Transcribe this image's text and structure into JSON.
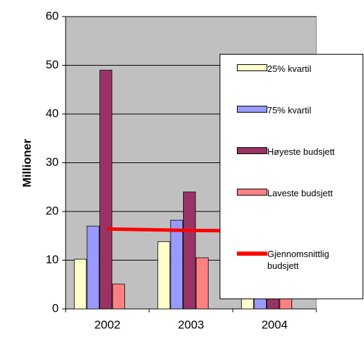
{
  "chart_data": {
    "type": "bar",
    "categories": [
      "2002",
      "2003",
      "2004"
    ],
    "y_label": "Millioner",
    "series": [
      {
        "name": "25% kvartil",
        "color": "#ffffcc",
        "values": [
          10.2,
          13.8,
          12
        ]
      },
      {
        "name": "75% kvartil",
        "color": "#9999ff",
        "values": [
          17,
          18.2,
          17
        ]
      },
      {
        "name": "Høyeste budsjett",
        "color": "#993366",
        "values": [
          49,
          24,
          20
        ]
      },
      {
        "name": "Laveste budsjett",
        "color": "#ff8080",
        "values": [
          5.1,
          10.5,
          10
        ]
      },
      {
        "name": "Gjennomsnittlig budsjett",
        "color": "#ff0000",
        "type": "line",
        "values": [
          16.4,
          16.1,
          16
        ]
      }
    ],
    "ylim": [
      0,
      60
    ],
    "yticks": [
      0,
      10,
      20,
      30,
      40,
      50,
      60
    ],
    "grid": true,
    "plot_background": "#c0c0c0",
    "legend": "right"
  }
}
